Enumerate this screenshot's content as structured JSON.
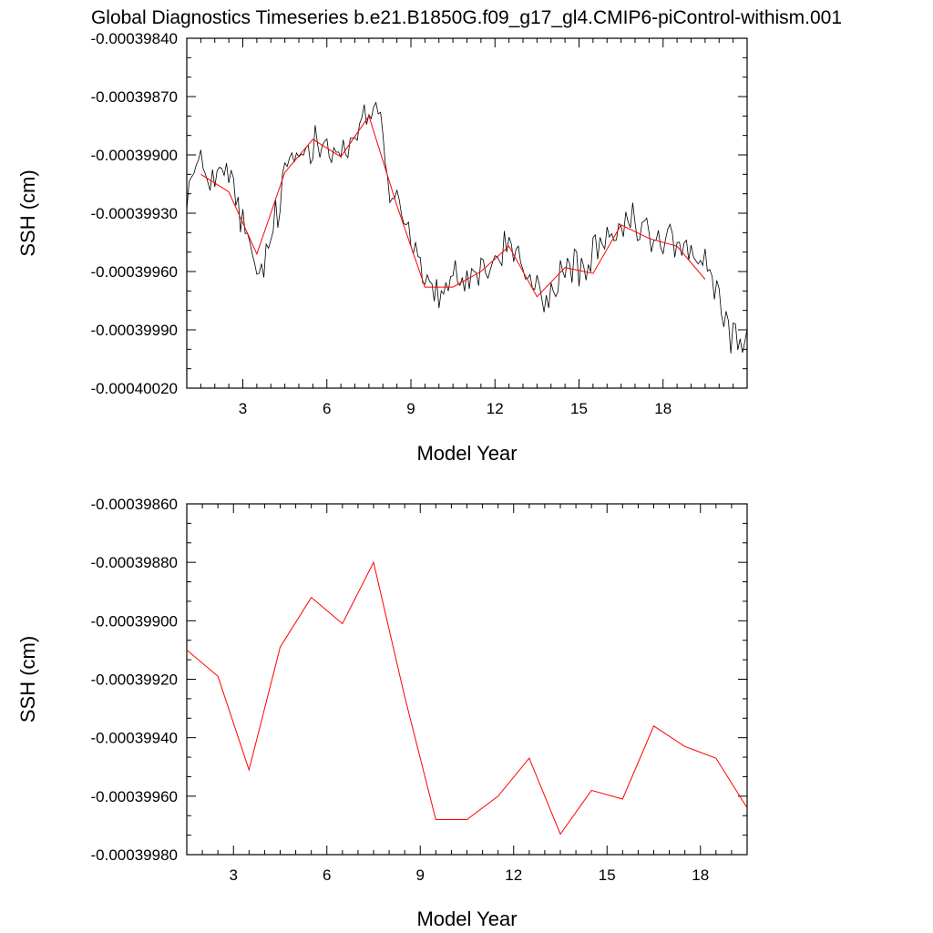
{
  "title": "Global Diagnostics Timeseries b.e21.B1850G.f09_g17_gl4.CMIP6-piControl-withism.001",
  "colors": {
    "monthly": "#000000",
    "annual": "#ff0000",
    "axis": "#000000"
  },
  "chart_data": [
    {
      "type": "line",
      "xlabel": "Model Year",
      "ylabel": "SSH (cm)",
      "xlim": [
        1.0,
        21.0
      ],
      "ylim": [
        -0.0004002,
        -0.0003984
      ],
      "xticks": [
        3,
        6,
        9,
        12,
        15,
        18
      ],
      "xtick_labels": [
        "3",
        "6",
        "9",
        "12",
        "15",
        "18"
      ],
      "yticks": [
        -0.0003984,
        -0.0003987,
        -0.000399,
        -0.0003993,
        -0.0003996,
        -0.0003999,
        -0.0004002
      ],
      "ytick_labels": [
        "-0.00039840",
        "-0.00039870",
        "-0.00039900",
        "-0.00039930",
        "-0.00039960",
        "-0.00039990",
        "-0.00040020"
      ],
      "series": [
        {
          "style": "monthly",
          "anchors_x": [
            1.0,
            1.4,
            2.0,
            2.5,
            2.7,
            3.0,
            3.3,
            3.6,
            4.0,
            4.3,
            4.6,
            5.0,
            5.4,
            5.7,
            6.0,
            6.3,
            6.6,
            7.0,
            7.3,
            7.6,
            7.9,
            8.1,
            8.3,
            8.6,
            9.0,
            9.3,
            9.6,
            10.0,
            10.3,
            10.6,
            11.0,
            11.4,
            11.8,
            12.2,
            12.6,
            13.0,
            13.3,
            13.6,
            14.0,
            14.4,
            14.8,
            15.2,
            15.6,
            16.0,
            16.3,
            16.6,
            17.0,
            17.3,
            17.6,
            18.0,
            18.3,
            18.6,
            19.0,
            19.4,
            19.7,
            20.0,
            20.3,
            20.6,
            21.0
          ],
          "anchors_y": [
            -0.00039918,
            -0.00039906,
            -0.00039912,
            -0.0003991,
            -0.0003992,
            -0.00039935,
            -0.00039955,
            -0.00039962,
            -0.00039945,
            -0.00039925,
            -0.00039905,
            -0.000399,
            -0.00039895,
            -0.00039888,
            -0.00039892,
            -0.00039898,
            -0.000399,
            -0.00039893,
            -0.00039885,
            -0.00039878,
            -0.00039875,
            -0.00039905,
            -0.0003992,
            -0.00039925,
            -0.0003994,
            -0.00039955,
            -0.00039968,
            -0.00039972,
            -0.00039975,
            -0.0003996,
            -0.00039965,
            -0.00039958,
            -0.0003996,
            -0.0003995,
            -0.00039945,
            -0.00039958,
            -0.00039968,
            -0.00039972,
            -0.00039975,
            -0.0003996,
            -0.00039955,
            -0.0003996,
            -0.0003995,
            -0.00039948,
            -0.00039945,
            -0.00039935,
            -0.0003994,
            -0.00039935,
            -0.00039945,
            -0.00039948,
            -0.00039942,
            -0.00039945,
            -0.0003995,
            -0.00039955,
            -0.00039965,
            -0.00039975,
            -0.0003999,
            -0.00039995,
            -0.00039992
          ],
          "noise": 7e-08
        },
        {
          "style": "annual",
          "x": [
            1.5,
            2.5,
            3.5,
            4.5,
            5.5,
            6.5,
            7.5,
            8.5,
            9.5,
            10.5,
            11.5,
            12.5,
            13.5,
            14.5,
            15.5,
            16.5,
            17.5,
            18.5,
            19.5
          ],
          "y": [
            -0.0003991,
            -0.00039919,
            -0.00039951,
            -0.00039909,
            -0.00039892,
            -0.00039901,
            -0.0003988,
            -0.00039926,
            -0.00039968,
            -0.00039968,
            -0.0003996,
            -0.00039947,
            -0.00039973,
            -0.00039958,
            -0.00039961,
            -0.00039936,
            -0.00039943,
            -0.00039947,
            -0.00039964
          ]
        }
      ]
    },
    {
      "type": "line",
      "xlabel": "Model Year",
      "ylabel": "SSH (cm)",
      "xlim": [
        1.5,
        19.5
      ],
      "ylim": [
        -0.0003998,
        -0.0003986
      ],
      "xticks": [
        3,
        6,
        9,
        12,
        15,
        18
      ],
      "xtick_labels": [
        "3",
        "6",
        "9",
        "12",
        "15",
        "18"
      ],
      "yticks": [
        -0.0003986,
        -0.0003988,
        -0.000399,
        -0.0003992,
        -0.0003994,
        -0.0003996,
        -0.0003998
      ],
      "ytick_labels": [
        "-0.00039860",
        "-0.00039880",
        "-0.00039900",
        "-0.00039920",
        "-0.00039940",
        "-0.00039960",
        "-0.00039980"
      ],
      "series": [
        {
          "style": "annual",
          "x": [
            1.5,
            2.5,
            3.5,
            4.5,
            5.5,
            6.5,
            7.5,
            8.5,
            9.5,
            10.5,
            11.5,
            12.5,
            13.5,
            14.5,
            15.5,
            16.5,
            17.5,
            18.5,
            19.5
          ],
          "y": [
            -0.0003991,
            -0.00039919,
            -0.00039951,
            -0.00039909,
            -0.00039892,
            -0.00039901,
            -0.0003988,
            -0.00039926,
            -0.00039968,
            -0.00039968,
            -0.0003996,
            -0.00039947,
            -0.00039973,
            -0.00039958,
            -0.00039961,
            -0.00039936,
            -0.00039943,
            -0.00039947,
            -0.00039964
          ]
        }
      ]
    }
  ]
}
